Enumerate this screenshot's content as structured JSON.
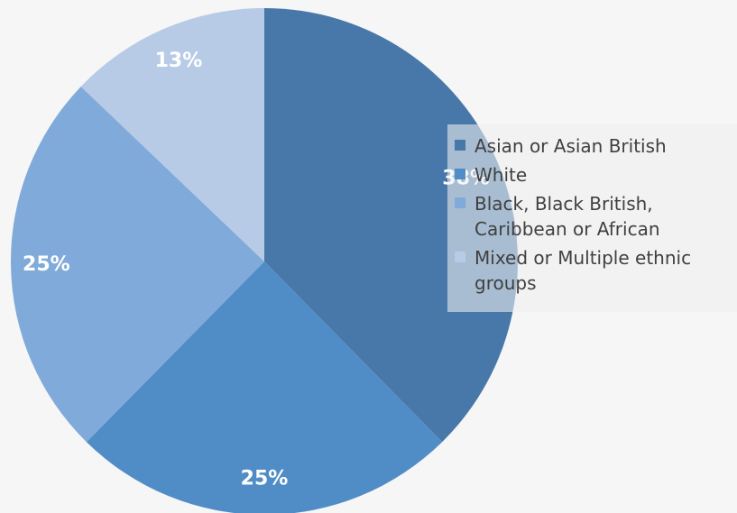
{
  "chart_data": {
    "type": "pie",
    "title": "",
    "slices": [
      {
        "label": "Asian or Asian British",
        "value": 38,
        "display": "38%",
        "color": "#4778a9"
      },
      {
        "label": "White",
        "value": 25,
        "display": "25%",
        "color": "#508dc6"
      },
      {
        "label": "Black, Black British, Caribbean or African",
        "value": 25,
        "display": "25%",
        "color": "#80aad9"
      },
      {
        "label": "Mixed or Multiple ethnic groups",
        "value": 13,
        "display": "13%",
        "color": "#b7cbe6"
      }
    ],
    "legend": {
      "position": "right"
    }
  }
}
